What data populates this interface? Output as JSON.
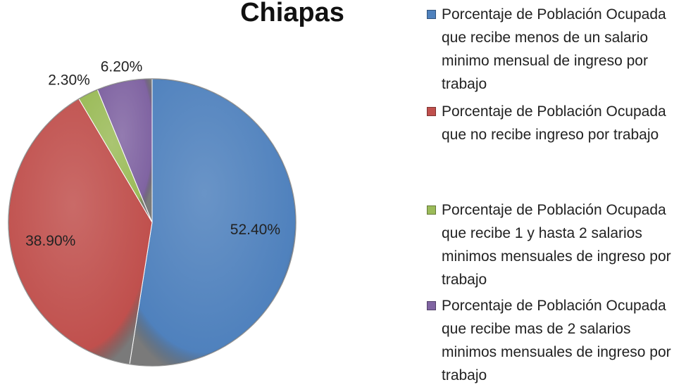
{
  "chart_data": {
    "type": "pie",
    "title": "Chiapas",
    "categories": [
      "Porcentaje de Población Ocupada que recibe menos de un salario minimo mensual de ingreso por trabajo",
      "Porcentaje de Población Ocupada que no recibe ingreso por trabajo",
      "Porcentaje de Población Ocupada que recibe 1 y hasta 2 salarios minimos mensuales de ingreso por trabajo",
      "Porcentaje de Población Ocupada que recibe mas de 2 salarios minimos mensuales de ingreso por trabajo"
    ],
    "values": [
      52.4,
      38.9,
      2.3,
      6.2
    ],
    "value_labels": [
      "52.40%",
      "38.90%",
      "2.30%",
      "6.20%"
    ],
    "colors": [
      "#4f81bd",
      "#c0504d",
      "#9bbb59",
      "#8064a2"
    ],
    "legend": "right"
  }
}
